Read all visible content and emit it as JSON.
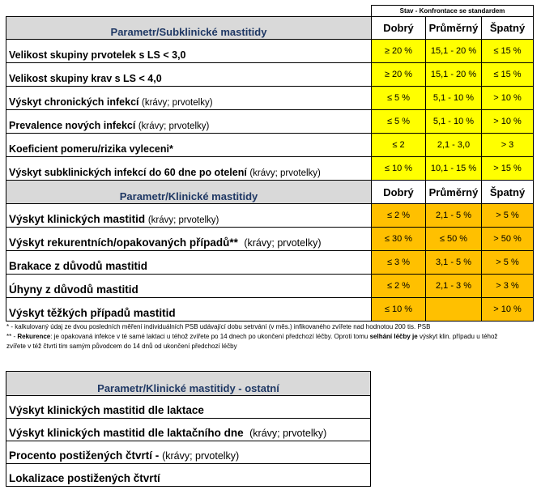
{
  "standard_header": "Stav - Konfrontace se standardem",
  "sub": {
    "title": "Parametr/Subklinické mastitidy",
    "cols": [
      "Dobrý",
      "Průměrný",
      "Špatný"
    ],
    "rows": [
      {
        "label": "Velikost skupiny prvotelek s LS < 3,0",
        "note": "",
        "v": [
          "≥ 20 %",
          "15,1 - 20 %",
          "≤ 15 %"
        ]
      },
      {
        "label": "Velikost skupiny krav s LS < 4,0",
        "note": "",
        "v": [
          "≥ 20 %",
          "15,1 - 20 %",
          "≤ 15 %"
        ]
      },
      {
        "label": "Výskyt chronických infekcí",
        "note": "(krávy; prvotelky)",
        "v": [
          "≤ 5 %",
          "5,1 - 10 %",
          "> 10 %"
        ]
      },
      {
        "label": "Prevalence nových infekcí",
        "note": "(krávy; prvotelky)",
        "v": [
          "≤ 5 %",
          "5,1 - 10 %",
          "> 10 %"
        ]
      },
      {
        "label": "Koeficient pomeru/rizika vyleceni*",
        "note": "",
        "v": [
          "≤ 2",
          "2,1 - 3,0",
          "> 3"
        ]
      },
      {
        "label": "Výskyt subklinických infekcí do 60 dne po otelení",
        "note": "(krávy; prvotelky)",
        "v": [
          "≤ 10 %",
          "10,1 - 15 %",
          "> 15 %"
        ]
      }
    ]
  },
  "clin": {
    "title": "Parametr/Klinické mastitidy",
    "cols": [
      "Dobrý",
      "Průměrný",
      "Špatný"
    ],
    "rows": [
      {
        "label": "Výskyt klinických mastitid",
        "note": "(krávy; prvotelky)",
        "v": [
          "≤ 2 %",
          "2,1 - 5 %",
          "> 5 %"
        ]
      },
      {
        "label": "Výskyt rekurentních/opakovaných případů**",
        "note": "(krávy; prvotelky)",
        "v": [
          "≤ 30 %",
          "≤ 50 %",
          "> 50 %"
        ]
      },
      {
        "label": "Brakace z důvodů mastitid",
        "note": "",
        "v": [
          "≤ 3 %",
          "3,1 - 5 %",
          "> 5 %"
        ]
      },
      {
        "label": "Úhyny z důvodů mastitid",
        "note": "",
        "v": [
          "≤ 2 %",
          "2,1 - 3 %",
          "> 3 %"
        ]
      },
      {
        "label": "Výskyt těžkých případů mastitid",
        "note": "",
        "v": [
          "≤ 10 %",
          "",
          "> 10 %"
        ]
      }
    ]
  },
  "notes": {
    "line1": "* - kalkulovaný údaj ze dvou posledních měření individuálních PSB udávající dobu setrvání (v měs.) infikovaného zvířete nad hodnotou 200 tis. PSB",
    "line2_prefix": "** - ",
    "line2_bold": "Rekurence",
    "line2_mid": ": je opakovaná infekce v té samé laktaci u téhož zvířete po 14 dnech po ukončení předchozí léčby. Oproti tomu ",
    "line2_bold2": "selhání léčby je",
    "line2_end": " výskyt klin. případu u téhož",
    "line3": "zvířete v též čtvrti tím samým původcem do 14 dnů od ukončení předchozí léčby"
  },
  "other": {
    "title": "Parametr/Klinické mastitidy - ostatní",
    "rows": [
      {
        "label": "Výskyt klinických mastitid dle laktace",
        "note": ""
      },
      {
        "label": "Výskyt klinických mastitid dle laktačního dne",
        "note": "(krávy; prvotelky)"
      },
      {
        "label": "Procento postižených čtvrtí -",
        "note": "(krávy; prvotelky)"
      },
      {
        "label": "Lokalizace postižených čtvrtí",
        "note": ""
      }
    ]
  }
}
